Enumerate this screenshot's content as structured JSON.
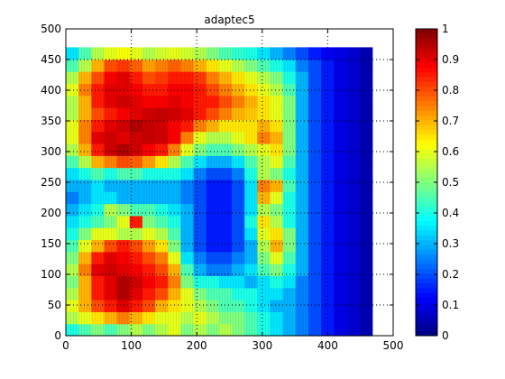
{
  "chart_data": {
    "type": "heatmap",
    "title": "adaptec5",
    "xlabel": "",
    "ylabel": "",
    "xlim": [
      0,
      500
    ],
    "ylim": [
      0,
      500
    ],
    "xticks": [
      0,
      100,
      200,
      300,
      400,
      500
    ],
    "yticks": [
      0,
      50,
      100,
      150,
      200,
      250,
      300,
      350,
      400,
      450,
      500
    ],
    "grid": "dotted",
    "colormap": "jet",
    "colorbar": {
      "range": [
        0,
        1
      ],
      "ticks": [
        0,
        0.1,
        0.2,
        0.3,
        0.4,
        0.5,
        0.6,
        0.7,
        0.8,
        0.9,
        1
      ],
      "tick_labels": [
        "0",
        "0.1",
        "0.2",
        "0.3",
        "0.4",
        "0.5",
        "0.6",
        "0.7",
        "0.8",
        "0.9",
        "1"
      ]
    },
    "data_extent": {
      "x": [
        0,
        468
      ],
      "y": [
        0,
        470
      ]
    },
    "resolution": [
      24,
      24
    ],
    "grid_values": [
      [
        0.4,
        0.45,
        0.5,
        0.45,
        0.5,
        0.55,
        0.5,
        0.55,
        0.6,
        0.5,
        0.55,
        0.5,
        0.55,
        0.5,
        0.45,
        0.4,
        0.35,
        0.3,
        0.25,
        0.2,
        0.15,
        0.1,
        0.08,
        0.05
      ],
      [
        0.55,
        0.6,
        0.65,
        0.7,
        0.75,
        0.7,
        0.65,
        0.6,
        0.6,
        0.55,
        0.6,
        0.55,
        0.5,
        0.5,
        0.45,
        0.4,
        0.35,
        0.3,
        0.25,
        0.2,
        0.15,
        0.1,
        0.08,
        0.05
      ],
      [
        0.6,
        0.7,
        0.8,
        0.85,
        0.9,
        0.85,
        0.8,
        0.7,
        0.65,
        0.6,
        0.55,
        0.5,
        0.45,
        0.45,
        0.4,
        0.35,
        0.3,
        0.3,
        0.25,
        0.2,
        0.15,
        0.1,
        0.08,
        0.05
      ],
      [
        0.55,
        0.7,
        0.85,
        0.9,
        0.95,
        0.9,
        0.85,
        0.8,
        0.7,
        0.6,
        0.5,
        0.45,
        0.45,
        0.4,
        0.4,
        0.35,
        0.35,
        0.3,
        0.25,
        0.2,
        0.15,
        0.1,
        0.08,
        0.05
      ],
      [
        0.5,
        0.7,
        0.85,
        0.9,
        0.95,
        0.92,
        0.88,
        0.85,
        0.75,
        0.5,
        0.4,
        0.4,
        0.35,
        0.35,
        0.3,
        0.35,
        0.4,
        0.35,
        0.25,
        0.2,
        0.15,
        0.1,
        0.08,
        0.05
      ],
      [
        0.55,
        0.75,
        0.9,
        0.92,
        0.9,
        0.88,
        0.85,
        0.8,
        0.7,
        0.45,
        0.3,
        0.25,
        0.25,
        0.3,
        0.35,
        0.45,
        0.5,
        0.4,
        0.3,
        0.2,
        0.15,
        0.1,
        0.08,
        0.05
      ],
      [
        0.5,
        0.7,
        0.85,
        0.9,
        0.88,
        0.85,
        0.8,
        0.75,
        0.6,
        0.35,
        0.25,
        0.2,
        0.2,
        0.25,
        0.3,
        0.5,
        0.6,
        0.45,
        0.3,
        0.2,
        0.15,
        0.1,
        0.08,
        0.05
      ],
      [
        0.45,
        0.6,
        0.7,
        0.8,
        0.85,
        0.8,
        0.72,
        0.65,
        0.5,
        0.3,
        0.2,
        0.15,
        0.15,
        0.2,
        0.3,
        0.55,
        0.7,
        0.5,
        0.3,
        0.2,
        0.15,
        0.1,
        0.08,
        0.05
      ],
      [
        0.4,
        0.5,
        0.6,
        0.6,
        0.55,
        0.55,
        0.6,
        0.55,
        0.45,
        0.3,
        0.2,
        0.15,
        0.15,
        0.2,
        0.35,
        0.6,
        0.65,
        0.5,
        0.3,
        0.2,
        0.15,
        0.1,
        0.08,
        0.05
      ],
      [
        0.35,
        0.4,
        0.45,
        0.5,
        0.6,
        0.85,
        0.5,
        0.45,
        0.4,
        0.3,
        0.2,
        0.15,
        0.15,
        0.2,
        0.4,
        0.65,
        0.55,
        0.4,
        0.3,
        0.2,
        0.15,
        0.1,
        0.08,
        0.05
      ],
      [
        0.3,
        0.35,
        0.4,
        0.55,
        0.5,
        0.45,
        0.45,
        0.4,
        0.35,
        0.3,
        0.2,
        0.15,
        0.15,
        0.2,
        0.35,
        0.55,
        0.5,
        0.4,
        0.3,
        0.2,
        0.15,
        0.1,
        0.08,
        0.05
      ],
      [
        0.25,
        0.3,
        0.35,
        0.35,
        0.3,
        0.3,
        0.3,
        0.3,
        0.3,
        0.25,
        0.2,
        0.15,
        0.15,
        0.2,
        0.35,
        0.7,
        0.6,
        0.4,
        0.3,
        0.2,
        0.15,
        0.1,
        0.08,
        0.05
      ],
      [
        0.3,
        0.3,
        0.35,
        0.3,
        0.3,
        0.3,
        0.3,
        0.3,
        0.3,
        0.25,
        0.2,
        0.15,
        0.15,
        0.2,
        0.35,
        0.75,
        0.7,
        0.45,
        0.3,
        0.2,
        0.15,
        0.1,
        0.08,
        0.05
      ],
      [
        0.35,
        0.4,
        0.45,
        0.4,
        0.45,
        0.45,
        0.4,
        0.4,
        0.4,
        0.35,
        0.25,
        0.2,
        0.2,
        0.25,
        0.4,
        0.55,
        0.5,
        0.4,
        0.3,
        0.2,
        0.15,
        0.1,
        0.08,
        0.05
      ],
      [
        0.45,
        0.55,
        0.7,
        0.75,
        0.8,
        0.78,
        0.72,
        0.65,
        0.55,
        0.45,
        0.35,
        0.3,
        0.3,
        0.35,
        0.45,
        0.55,
        0.6,
        0.45,
        0.3,
        0.2,
        0.15,
        0.1,
        0.08,
        0.05
      ],
      [
        0.55,
        0.7,
        0.85,
        0.92,
        0.95,
        0.92,
        0.88,
        0.85,
        0.75,
        0.6,
        0.5,
        0.45,
        0.45,
        0.5,
        0.55,
        0.6,
        0.65,
        0.5,
        0.3,
        0.2,
        0.15,
        0.1,
        0.08,
        0.05
      ],
      [
        0.6,
        0.75,
        0.9,
        0.92,
        0.9,
        0.92,
        0.93,
        0.92,
        0.88,
        0.75,
        0.6,
        0.55,
        0.55,
        0.6,
        0.65,
        0.75,
        0.7,
        0.5,
        0.3,
        0.2,
        0.15,
        0.1,
        0.08,
        0.05
      ],
      [
        0.6,
        0.75,
        0.85,
        0.9,
        0.92,
        0.95,
        0.93,
        0.92,
        0.88,
        0.85,
        0.75,
        0.7,
        0.65,
        0.65,
        0.65,
        0.7,
        0.65,
        0.5,
        0.3,
        0.2,
        0.15,
        0.1,
        0.08,
        0.05
      ],
      [
        0.55,
        0.7,
        0.8,
        0.85,
        0.88,
        0.9,
        0.92,
        0.93,
        0.92,
        0.9,
        0.85,
        0.8,
        0.75,
        0.7,
        0.68,
        0.65,
        0.6,
        0.5,
        0.3,
        0.2,
        0.15,
        0.1,
        0.08,
        0.05
      ],
      [
        0.55,
        0.7,
        0.85,
        0.9,
        0.92,
        0.9,
        0.88,
        0.88,
        0.9,
        0.88,
        0.85,
        0.85,
        0.8,
        0.75,
        0.7,
        0.65,
        0.6,
        0.5,
        0.3,
        0.2,
        0.15,
        0.1,
        0.08,
        0.05
      ],
      [
        0.6,
        0.75,
        0.85,
        0.9,
        0.9,
        0.88,
        0.85,
        0.85,
        0.88,
        0.88,
        0.85,
        0.8,
        0.75,
        0.7,
        0.65,
        0.6,
        0.55,
        0.45,
        0.3,
        0.2,
        0.15,
        0.1,
        0.08,
        0.05
      ],
      [
        0.55,
        0.7,
        0.8,
        0.88,
        0.9,
        0.85,
        0.8,
        0.82,
        0.85,
        0.85,
        0.82,
        0.75,
        0.7,
        0.65,
        0.6,
        0.55,
        0.5,
        0.4,
        0.3,
        0.2,
        0.15,
        0.1,
        0.08,
        0.05
      ],
      [
        0.45,
        0.55,
        0.7,
        0.8,
        0.82,
        0.78,
        0.72,
        0.75,
        0.78,
        0.75,
        0.7,
        0.65,
        0.6,
        0.55,
        0.5,
        0.45,
        0.4,
        0.35,
        0.25,
        0.2,
        0.15,
        0.1,
        0.08,
        0.05
      ],
      [
        0.35,
        0.45,
        0.55,
        0.6,
        0.62,
        0.6,
        0.55,
        0.58,
        0.6,
        0.58,
        0.55,
        0.5,
        0.45,
        0.42,
        0.4,
        0.35,
        0.3,
        0.25,
        0.2,
        0.15,
        0.12,
        0.1,
        0.08,
        0.05
      ]
    ]
  }
}
